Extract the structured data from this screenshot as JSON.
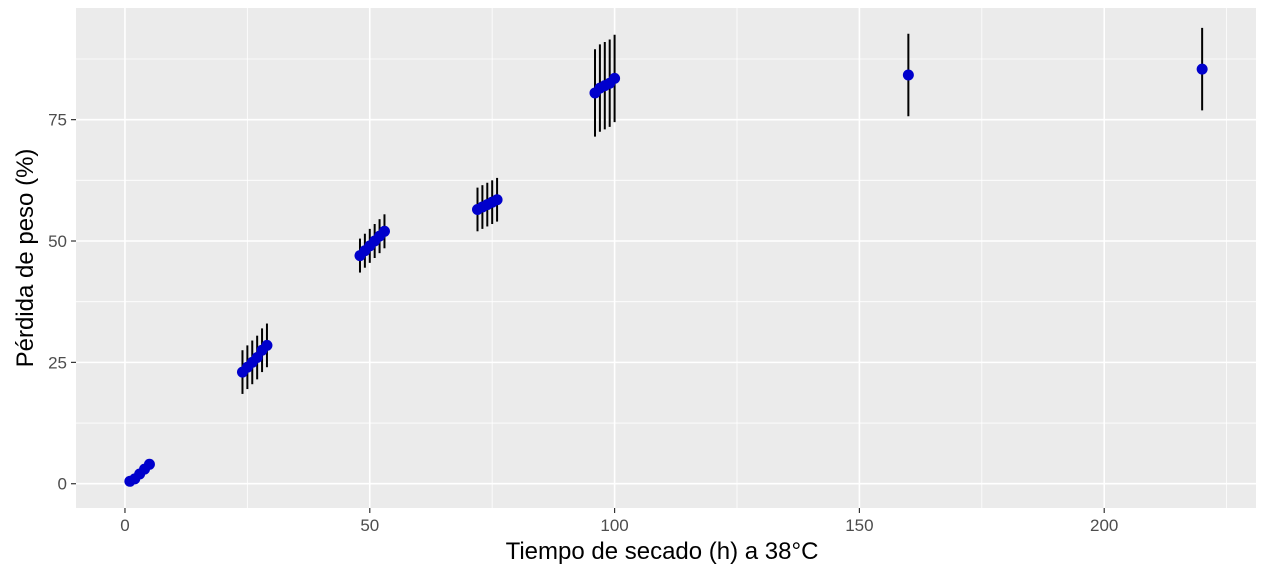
{
  "chart_data": {
    "type": "scatter",
    "title": "",
    "xlabel": "Tiempo de secado (h) a 38°C",
    "ylabel": "Pérdida de peso (%)",
    "xlim": [
      -10,
      231
    ],
    "ylim": [
      -5,
      98
    ],
    "x_ticks": [
      0,
      50,
      100,
      150,
      200
    ],
    "y_ticks": [
      0,
      25,
      50,
      75
    ],
    "x_tick_labels": [
      "0",
      "50",
      "100",
      "150",
      "200"
    ],
    "y_tick_labels": [
      "0",
      "25",
      "50",
      "75"
    ],
    "grid": true,
    "legend": "none",
    "colors": {
      "panel_background": "#ebebeb",
      "grid_major": "#ffffff",
      "point": "#0000cc",
      "errorbar": "#000000"
    },
    "points": [
      {
        "x": 1,
        "y": 0.5,
        "err": 0
      },
      {
        "x": 2,
        "y": 1.0,
        "err": 0
      },
      {
        "x": 3,
        "y": 2.0,
        "err": 0
      },
      {
        "x": 4,
        "y": 3.0,
        "err": 0
      },
      {
        "x": 5,
        "y": 4.0,
        "err": 0
      },
      {
        "x": 24,
        "y": 23.0,
        "err": 4.5
      },
      {
        "x": 25,
        "y": 24.0,
        "err": 4.5
      },
      {
        "x": 26,
        "y": 25.0,
        "err": 4.5
      },
      {
        "x": 27,
        "y": 26.0,
        "err": 4.5
      },
      {
        "x": 28,
        "y": 27.5,
        "err": 4.5
      },
      {
        "x": 29,
        "y": 28.5,
        "err": 4.5
      },
      {
        "x": 48,
        "y": 47.0,
        "err": 3.5
      },
      {
        "x": 49,
        "y": 48.0,
        "err": 3.5
      },
      {
        "x": 50,
        "y": 49.0,
        "err": 3.5
      },
      {
        "x": 51,
        "y": 50.0,
        "err": 3.5
      },
      {
        "x": 52,
        "y": 51.0,
        "err": 3.5
      },
      {
        "x": 53,
        "y": 52.0,
        "err": 3.5
      },
      {
        "x": 72,
        "y": 56.5,
        "err": 4.5
      },
      {
        "x": 73,
        "y": 57.0,
        "err": 4.5
      },
      {
        "x": 74,
        "y": 57.5,
        "err": 4.5
      },
      {
        "x": 75,
        "y": 58.0,
        "err": 4.5
      },
      {
        "x": 76,
        "y": 58.5,
        "err": 4.5
      },
      {
        "x": 96,
        "y": 80.5,
        "err": 9.0
      },
      {
        "x": 97,
        "y": 81.5,
        "err": 9.0
      },
      {
        "x": 98,
        "y": 82.0,
        "err": 9.0
      },
      {
        "x": 99,
        "y": 82.5,
        "err": 9.0
      },
      {
        "x": 100,
        "y": 83.5,
        "err": 9.0
      },
      {
        "x": 160,
        "y": 84.2,
        "err": 8.5
      },
      {
        "x": 220,
        "y": 85.4,
        "err": 8.5
      }
    ]
  }
}
